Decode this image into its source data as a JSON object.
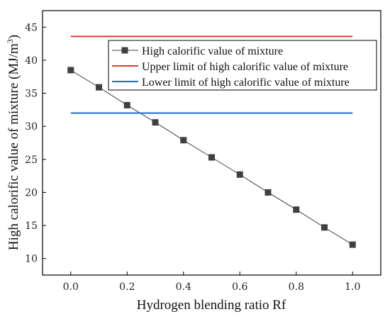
{
  "chart_data": {
    "type": "line",
    "xlabel": "Hydrogen blending ratio Rf",
    "ylabel_main": "High calorific value of mixture (MJ/m",
    "ylabel_sup": "3",
    "ylabel_end": ")",
    "xlim": [
      -0.1,
      1.1
    ],
    "ylim": [
      7.5,
      47.5
    ],
    "xticks": [
      0.0,
      0.2,
      0.4,
      0.6,
      0.8,
      1.0
    ],
    "xtick_labels": [
      "0.0",
      "0.2",
      "0.4",
      "0.6",
      "0.8",
      "1.0"
    ],
    "yticks": [
      10,
      15,
      20,
      25,
      30,
      35,
      40,
      45
    ],
    "ytick_labels": [
      "10",
      "15",
      "20",
      "25",
      "30",
      "35",
      "40",
      "45"
    ],
    "grid": false,
    "legend_position": "top-right",
    "series": [
      {
        "name": "High calorific value of mixture",
        "color": "#404040",
        "marker": "square",
        "x": [
          0.0,
          0.1,
          0.2,
          0.3,
          0.4,
          0.5,
          0.6,
          0.7,
          0.8,
          0.9,
          1.0
        ],
        "y": [
          38.5,
          35.9,
          33.2,
          30.6,
          27.9,
          25.3,
          22.7,
          20.0,
          17.4,
          14.7,
          12.1
        ]
      },
      {
        "name": "Upper limit of high calorific value of mixture",
        "color": "#e03c32",
        "marker": "none",
        "x": [
          0.0,
          1.0
        ],
        "y": [
          43.6,
          43.6
        ]
      },
      {
        "name": "Lower limit of high calorific value of mixture",
        "color": "#1f6cc0",
        "marker": "none",
        "x": [
          0.0,
          1.0
        ],
        "y": [
          32.0,
          32.0
        ]
      }
    ]
  }
}
